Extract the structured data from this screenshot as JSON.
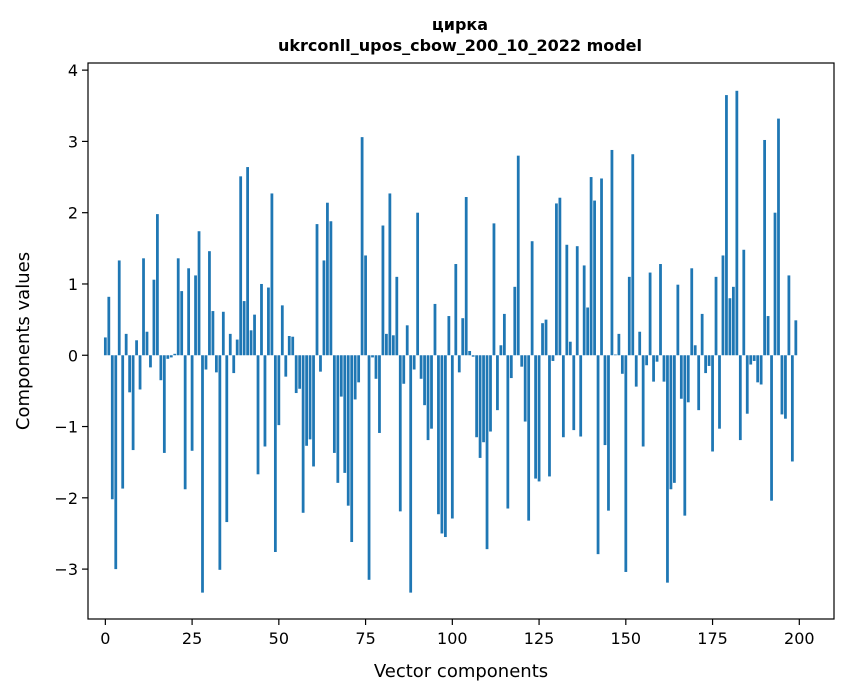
{
  "chart_data": {
    "type": "bar",
    "title": "цирка",
    "subtitle": "ukrconll_upos_cbow_200_10_2022 model",
    "xlabel": "Vector components",
    "ylabel": "Components values",
    "xlim": [
      -5,
      210
    ],
    "ylim": [
      -3.7,
      4.1
    ],
    "xticks": [
      0,
      25,
      50,
      75,
      100,
      125,
      150,
      175,
      200
    ],
    "xtick_labels": [
      "0",
      "25",
      "50",
      "75",
      "100",
      "125",
      "150",
      "175",
      "200"
    ],
    "yticks": [
      -3,
      -2,
      -1,
      0,
      1,
      2,
      3,
      4
    ],
    "ytick_labels": [
      "−3",
      "−2",
      "−1",
      "0",
      "1",
      "2",
      "3",
      "4"
    ],
    "grid": false,
    "bar_color": "#1f77b4",
    "x": [
      0,
      1,
      2,
      3,
      4,
      5,
      6,
      7,
      8,
      9,
      10,
      11,
      12,
      13,
      14,
      15,
      16,
      17,
      18,
      19,
      20,
      21,
      22,
      23,
      24,
      25,
      26,
      27,
      28,
      29,
      30,
      31,
      32,
      33,
      34,
      35,
      36,
      37,
      38,
      39,
      40,
      41,
      42,
      43,
      44,
      45,
      46,
      47,
      48,
      49,
      50,
      51,
      52,
      53,
      54,
      55,
      56,
      57,
      58,
      59,
      60,
      61,
      62,
      63,
      64,
      65,
      66,
      67,
      68,
      69,
      70,
      71,
      72,
      73,
      74,
      75,
      76,
      77,
      78,
      79,
      80,
      81,
      82,
      83,
      84,
      85,
      86,
      87,
      88,
      89,
      90,
      91,
      92,
      93,
      94,
      95,
      96,
      97,
      98,
      99,
      100,
      101,
      102,
      103,
      104,
      105,
      106,
      107,
      108,
      109,
      110,
      111,
      112,
      113,
      114,
      115,
      116,
      117,
      118,
      119,
      120,
      121,
      122,
      123,
      124,
      125,
      126,
      127,
      128,
      129,
      130,
      131,
      132,
      133,
      134,
      135,
      136,
      137,
      138,
      139,
      140,
      141,
      142,
      143,
      144,
      145,
      146,
      147,
      148,
      149,
      150,
      151,
      152,
      153,
      154,
      155,
      156,
      157,
      158,
      159,
      160,
      161,
      162,
      163,
      164,
      165,
      166,
      167,
      168,
      169,
      170,
      171,
      172,
      173,
      174,
      175,
      176,
      177,
      178,
      179,
      180,
      181,
      182,
      183,
      184,
      185,
      186,
      187,
      188,
      189,
      190,
      191,
      192,
      193,
      194,
      195,
      196,
      197,
      198,
      199
    ],
    "values": [
      0.25,
      0.82,
      -2.02,
      -3.0,
      1.33,
      -1.87,
      0.3,
      -0.52,
      -1.33,
      0.21,
      -0.48,
      1.36,
      0.33,
      -0.17,
      1.06,
      1.98,
      -0.35,
      -1.37,
      -0.05,
      -0.03,
      0.02,
      1.36,
      0.9,
      -1.88,
      1.22,
      -1.34,
      1.12,
      1.74,
      -3.33,
      -0.2,
      1.46,
      0.62,
      -0.24,
      -3.01,
      0.61,
      -2.34,
      0.3,
      -0.25,
      0.22,
      2.51,
      0.76,
      2.64,
      0.35,
      0.57,
      -1.67,
      1.0,
      -1.28,
      0.95,
      2.27,
      -2.76,
      -0.98,
      0.7,
      -0.3,
      0.27,
      0.26,
      -0.53,
      -0.47,
      -2.21,
      -1.27,
      -1.18,
      -1.56,
      1.84,
      -0.23,
      1.33,
      2.14,
      1.88,
      -1.37,
      -1.79,
      -0.58,
      -1.65,
      -2.11,
      -2.62,
      -0.62,
      -0.38,
      3.06,
      1.4,
      -3.15,
      -0.03,
      -0.33,
      -1.09,
      1.82,
      0.3,
      2.27,
      0.28,
      1.1,
      -2.19,
      -0.4,
      0.42,
      -3.33,
      -0.2,
      2.0,
      -0.33,
      -0.7,
      -1.19,
      -1.03,
      0.72,
      -2.23,
      -2.5,
      -2.55,
      0.55,
      -2.29,
      1.28,
      -0.24,
      0.52,
      2.22,
      0.06,
      -0.02,
      -1.15,
      -1.44,
      -1.22,
      -2.72,
      -1.07,
      1.85,
      -0.77,
      0.14,
      0.58,
      -2.15,
      -0.32,
      0.96,
      2.8,
      -0.16,
      -0.93,
      -2.32,
      1.6,
      -1.73,
      -1.77,
      0.45,
      0.5,
      -1.7,
      -0.08,
      2.13,
      2.21,
      -1.15,
      1.55,
      0.19,
      -1.05,
      1.53,
      -1.14,
      1.26,
      0.67,
      2.5,
      2.17,
      -2.79,
      2.48,
      -1.26,
      -2.18,
      2.88,
      0.01,
      0.3,
      -0.26,
      -3.04,
      1.1,
      2.82,
      -0.44,
      0.33,
      -1.28,
      -0.14,
      1.16,
      -0.37,
      -0.09,
      1.28,
      -0.37,
      -3.19,
      -1.88,
      -1.79,
      0.99,
      -0.61,
      -2.25,
      -0.66,
      1.22,
      0.14,
      -0.77,
      0.58,
      -0.25,
      -0.15,
      -1.35,
      1.1,
      -1.03,
      1.4,
      3.65,
      0.8,
      0.96,
      3.71,
      -1.19,
      1.48,
      -0.82,
      -0.13,
      -0.08,
      -0.38,
      -0.41,
      3.02,
      0.55,
      -2.04,
      2.0,
      3.32,
      -0.83,
      -0.89,
      1.12,
      -1.49,
      0.49
    ]
  }
}
